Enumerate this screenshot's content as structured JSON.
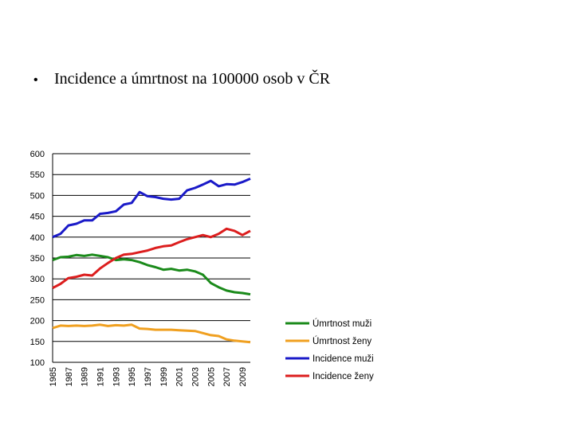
{
  "heading": {
    "bullet": "•",
    "text": "Incidence a úmrtnost na 100000 osob v ČR"
  },
  "chart_data": {
    "type": "line",
    "title": "",
    "xlabel": "",
    "ylabel": "",
    "ylim": [
      100,
      600
    ],
    "xlim": [
      1985,
      2010
    ],
    "y_ticks": [
      100,
      150,
      200,
      250,
      300,
      350,
      400,
      450,
      500,
      550,
      600
    ],
    "x_tick_labels": [
      "1985",
      "1987",
      "1989",
      "1991",
      "1993",
      "1995",
      "1997",
      "1999",
      "2001",
      "2003",
      "2005",
      "2007",
      "2009"
    ],
    "grid": true,
    "legend_position": "right",
    "x": [
      1985,
      1986,
      1987,
      1988,
      1989,
      1990,
      1991,
      1992,
      1993,
      1994,
      1995,
      1996,
      1997,
      1998,
      1999,
      2000,
      2001,
      2002,
      2003,
      2004,
      2005,
      2006,
      2007,
      2008,
      2009,
      2010
    ],
    "series": [
      {
        "name": "Úmrtnost muži",
        "color": "#1a8a1a",
        "values": [
          345,
          352,
          353,
          357,
          355,
          358,
          355,
          352,
          345,
          347,
          345,
          340,
          333,
          328,
          322,
          324,
          320,
          322,
          318,
          310,
          290,
          280,
          272,
          268,
          266,
          263
        ]
      },
      {
        "name": "Úmrtnost ženy",
        "color": "#f0a020",
        "values": [
          182,
          188,
          187,
          188,
          187,
          188,
          190,
          187,
          189,
          188,
          190,
          181,
          180,
          178,
          178,
          178,
          177,
          176,
          175,
          170,
          165,
          163,
          155,
          152,
          150,
          148
        ]
      },
      {
        "name": "Incidence muži",
        "color": "#1a1ac8",
        "values": [
          400,
          408,
          428,
          432,
          440,
          440,
          456,
          458,
          462,
          478,
          482,
          508,
          498,
          496,
          492,
          490,
          492,
          512,
          518,
          526,
          535,
          522,
          527,
          526,
          532,
          540
        ]
      },
      {
        "name": "Incidence ženy",
        "color": "#dc1e1e",
        "values": [
          278,
          288,
          302,
          305,
          310,
          308,
          325,
          338,
          350,
          358,
          360,
          364,
          368,
          374,
          378,
          380,
          388,
          395,
          400,
          405,
          400,
          408,
          420,
          415,
          405,
          415
        ]
      }
    ]
  }
}
